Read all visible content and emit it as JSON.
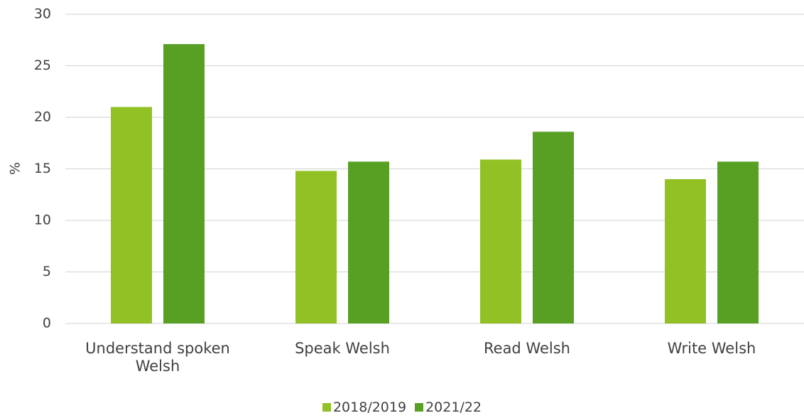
{
  "chart_data": {
    "type": "bar",
    "y_label": "%",
    "categories": [
      "Understand spoken Welsh",
      "Speak Welsh",
      "Read Welsh",
      "Write Welsh"
    ],
    "series": [
      {
        "name": "2018/2019",
        "color": "#92c125",
        "values": [
          21.0,
          14.8,
          15.9,
          14.0
        ]
      },
      {
        "name": "2021/22",
        "color": "#57a023",
        "values": [
          27.1,
          15.7,
          18.6,
          15.7
        ]
      }
    ],
    "ylim": [
      0,
      30
    ],
    "yticks": [
      0,
      5,
      10,
      15,
      20,
      25,
      30
    ],
    "grid": true,
    "legend": "bottom"
  }
}
